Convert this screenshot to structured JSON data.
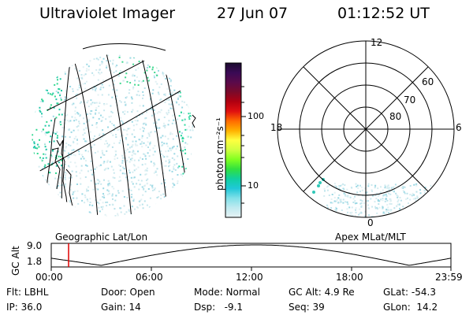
{
  "header": {
    "title": "Ultraviolet Imager",
    "date": "27 Jun 07",
    "time": "01:12:52 UT"
  },
  "colorbar": {
    "label": "photon cm⁻²s⁻¹",
    "ticks": [
      "100",
      "10"
    ],
    "colors": [
      "#1a0a2e",
      "#3a0a55",
      "#5a0a4a",
      "#7a0a2a",
      "#b00010",
      "#e01010",
      "#ff6a00",
      "#ffb000",
      "#ffff40",
      "#d0ff40",
      "#80ff20",
      "#30e040",
      "#10d0a0",
      "#20c8d8",
      "#80e0e8",
      "#c0eaf0",
      "#e6f2f4"
    ]
  },
  "polar": {
    "lat_labels": [
      "80",
      "70",
      "60"
    ],
    "mlt_labels": [
      "12",
      "18",
      "6",
      "0"
    ]
  },
  "sublabels": {
    "left": "Geographic Lat/Lon",
    "right": "Apex MLat/MLT"
  },
  "altitude_plot": {
    "ylabel": "GC Alt",
    "yticks": [
      "9.0",
      "1.8"
    ],
    "xticks": [
      "00:00",
      "06:00",
      "12:00",
      "18:00",
      "23:59"
    ],
    "marker_color": "#e00000"
  },
  "info": {
    "flt": "Flt: LBHL",
    "door": "Door: Open",
    "mode": "Mode: Normal",
    "gcalt": "GC Alt: 4.9 Re",
    "glat": "GLat: -54.3",
    "ip": "IP: 36.0",
    "gain": "Gain: 14",
    "dsp": "Dsp:   -9.1",
    "seq": "Seq: 39",
    "glon": "GLon:  14.2"
  }
}
